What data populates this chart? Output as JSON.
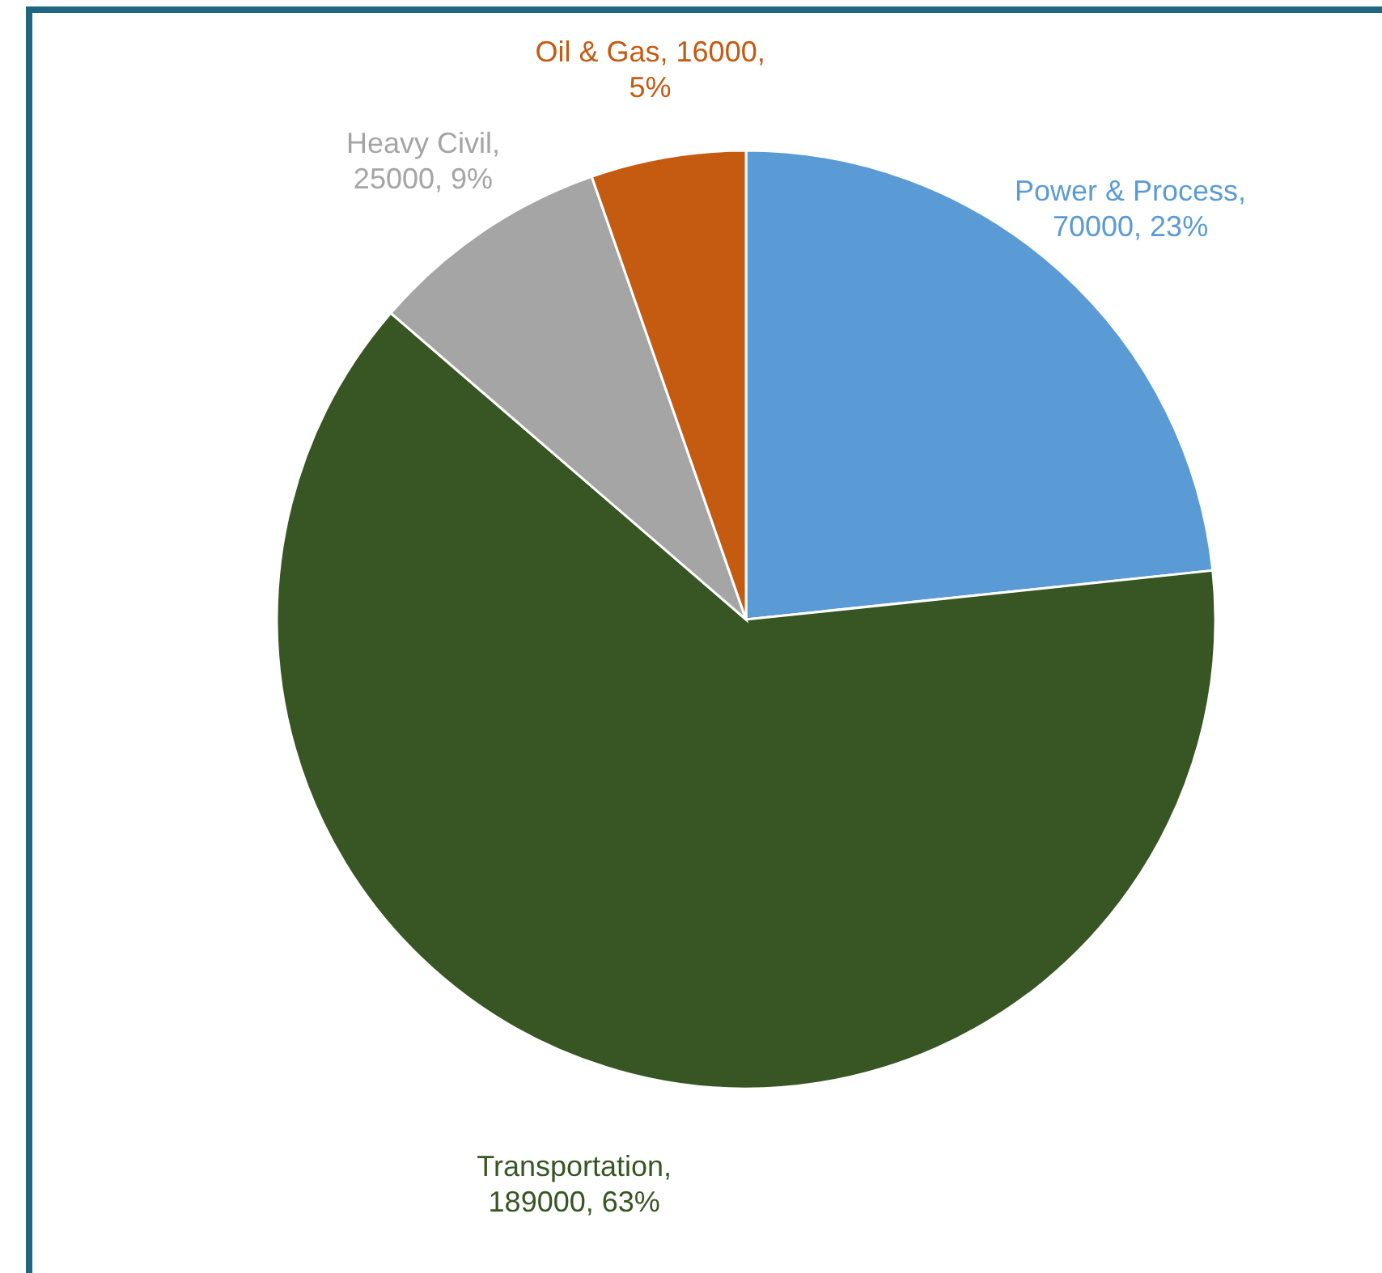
{
  "chart_data": {
    "type": "pie",
    "categories": [
      "Power & Process",
      "Transportation",
      "Heavy Civil",
      "Oil & Gas"
    ],
    "values": [
      70000,
      189000,
      25000,
      16000
    ],
    "colors": [
      "#5b9bd5",
      "#375623",
      "#a5a5a5",
      "#c55a11"
    ],
    "value_labels": [
      ", 70000, 23%",
      ", 189000, 63%",
      ", 25000, 9%",
      ", 16000, 5%"
    ]
  }
}
